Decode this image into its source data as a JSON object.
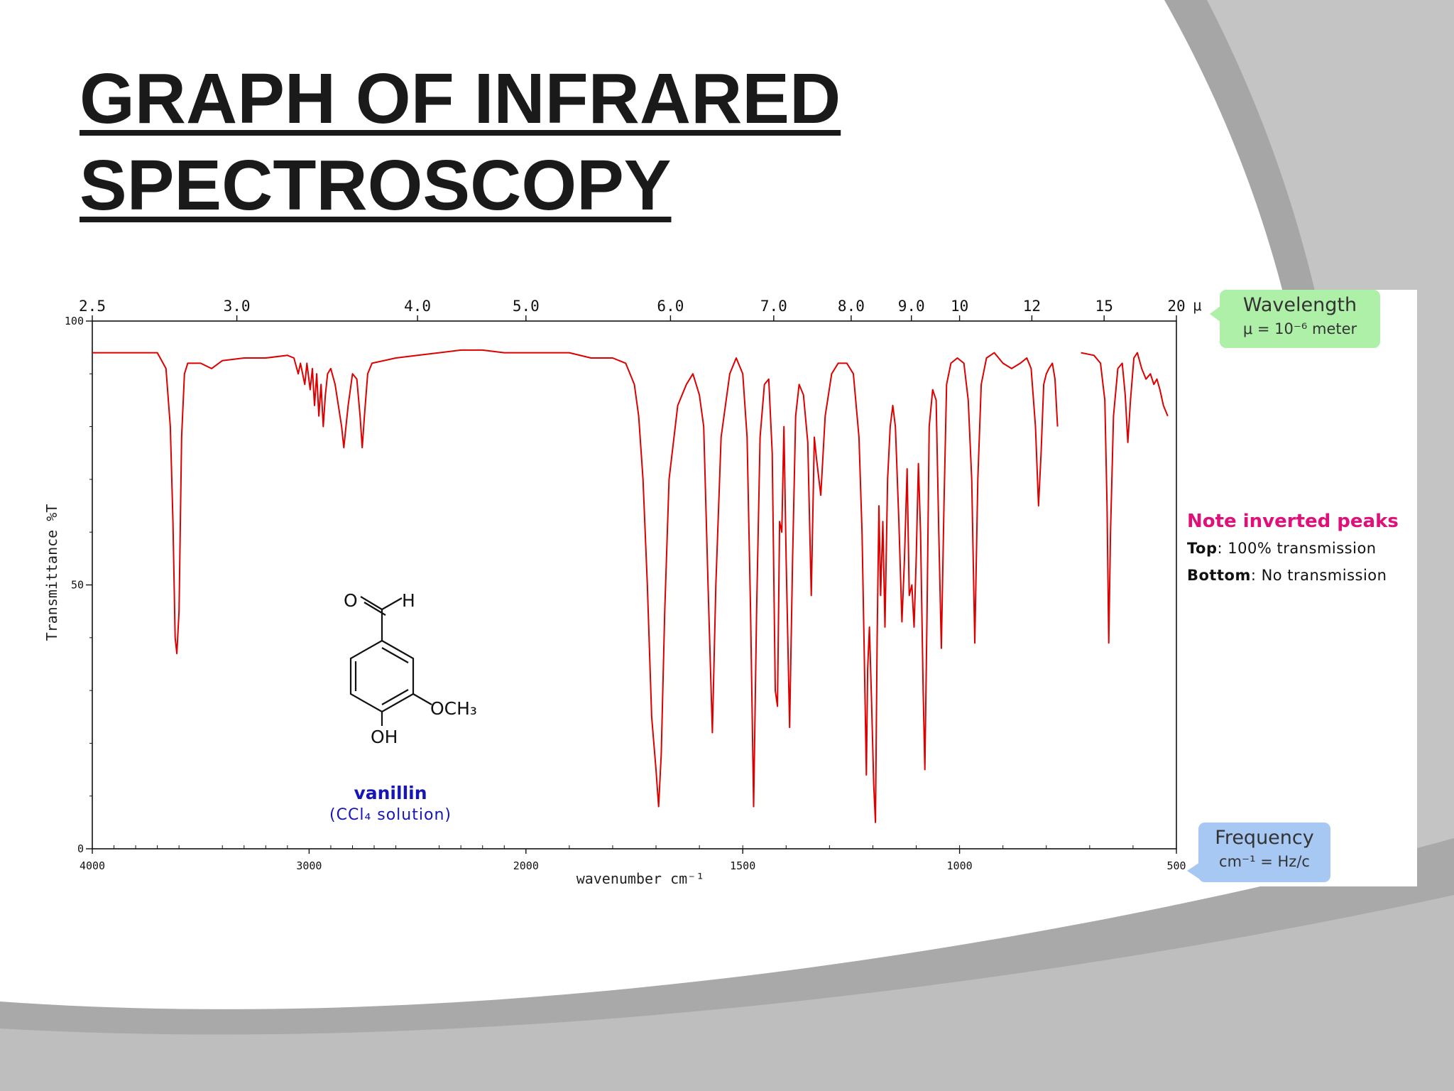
{
  "slide": {
    "title_line1": "GRAPH OF INFRARED",
    "title_line2": "SPECTROSCOPY"
  },
  "callouts": {
    "wavelength_title": "Wavelength",
    "wavelength_units": "μ = 10⁻⁶ meter",
    "frequency_title": "Frequency",
    "frequency_units": "cm⁻¹ = Hz/c"
  },
  "note": {
    "heading": "Note inverted peaks",
    "top_label": "Top",
    "top_text": ": 100% transmission",
    "bottom_label": "Bottom",
    "bottom_text": ": No transmission"
  },
  "molecule": {
    "name": "vanillin",
    "solvent": "(CCl₄ solution)",
    "atoms": {
      "o_aldehyde": "O",
      "h_aldehyde": "H",
      "methoxy": "OCH₃",
      "hydroxyl": "OH"
    }
  },
  "colors": {
    "spectrum": "#dd0000",
    "note_heading": "#e0107a",
    "molecule_label": "#1515b8",
    "wavelength_callout": "#aef0a8",
    "frequency_callout": "#a8c8f4"
  },
  "chart_data": {
    "type": "line",
    "title": "",
    "xlabel": "wavenumber cm⁻¹",
    "ylabel": "Transmittance %T",
    "xlim": [
      4000,
      500
    ],
    "ylim": [
      0,
      100
    ],
    "x_ticks": [
      4000,
      3000,
      2000,
      1500,
      1000,
      500
    ],
    "y_ticks": [
      0,
      50,
      100
    ],
    "top_axis_label": "μ",
    "top_ticks": [
      2.5,
      3.0,
      4.0,
      5.0,
      6.0,
      7.0,
      8.0,
      9.0,
      10,
      12,
      15,
      20
    ],
    "top_tick_labels": [
      "2.5",
      "3.0",
      "4.0",
      "5.0",
      "6.0",
      "7.0",
      "8.0",
      "9.0",
      "10",
      "12",
      "15",
      "20"
    ],
    "grid": false,
    "series": [
      {
        "segments": [
          [
            [
              4000,
              94
            ],
            [
              3800,
              94
            ],
            [
              3700,
              94
            ],
            [
              3660,
              91
            ],
            [
              3640,
              80
            ],
            [
              3628,
              62
            ],
            [
              3618,
              40
            ],
            [
              3610,
              37
            ],
            [
              3600,
              45
            ],
            [
              3588,
              78
            ],
            [
              3575,
              90
            ],
            [
              3560,
              92
            ],
            [
              3500,
              92
            ],
            [
              3450,
              91
            ],
            [
              3400,
              92.5
            ],
            [
              3300,
              93
            ],
            [
              3200,
              93
            ],
            [
              3100,
              93.5
            ],
            [
              3070,
              93
            ],
            [
              3050,
              90
            ],
            [
              3040,
              92
            ],
            [
              3020,
              88
            ],
            [
              3010,
              92
            ],
            [
              2995,
              87
            ],
            [
              2985,
              91
            ],
            [
              2975,
              84
            ],
            [
              2965,
              90
            ],
            [
              2955,
              82
            ],
            [
              2945,
              88
            ],
            [
              2935,
              80
            ],
            [
              2925,
              86
            ],
            [
              2915,
              90
            ],
            [
              2900,
              91
            ],
            [
              2880,
              88
            ],
            [
              2865,
              84
            ],
            [
              2850,
              80
            ],
            [
              2840,
              76
            ],
            [
              2830,
              80
            ],
            [
              2820,
              84
            ],
            [
              2800,
              90
            ],
            [
              2780,
              89
            ],
            [
              2765,
              82
            ],
            [
              2755,
              76
            ],
            [
              2745,
              82
            ],
            [
              2730,
              90
            ],
            [
              2710,
              92
            ],
            [
              2600,
              93
            ],
            [
              2500,
              93.5
            ],
            [
              2400,
              94
            ],
            [
              2300,
              94.5
            ],
            [
              2200,
              94.5
            ],
            [
              2100,
              94
            ],
            [
              2000,
              94
            ],
            [
              1900,
              94
            ],
            [
              1850,
              93
            ],
            [
              1800,
              93
            ],
            [
              1770,
              92
            ],
            [
              1750,
              88
            ],
            [
              1740,
              82
            ],
            [
              1730,
              70
            ],
            [
              1720,
              50
            ],
            [
              1710,
              25
            ],
            [
              1700,
              15
            ],
            [
              1694,
              8
            ],
            [
              1688,
              18
            ],
            [
              1680,
              45
            ],
            [
              1670,
              70
            ],
            [
              1650,
              84
            ],
            [
              1630,
              88
            ],
            [
              1615,
              90
            ],
            [
              1600,
              86
            ],
            [
              1590,
              80
            ],
            [
              1580,
              50
            ],
            [
              1570,
              22
            ],
            [
              1562,
              50
            ],
            [
              1550,
              78
            ],
            [
              1530,
              90
            ],
            [
              1515,
              93
            ],
            [
              1500,
              90
            ],
            [
              1490,
              78
            ],
            [
              1482,
              45
            ],
            [
              1475,
              8
            ],
            [
              1468,
              45
            ],
            [
              1460,
              78
            ],
            [
              1450,
              88
            ],
            [
              1440,
              89
            ],
            [
              1432,
              75
            ],
            [
              1425,
              30
            ],
            [
              1420,
              27
            ],
            [
              1415,
              62
            ],
            [
              1410,
              60
            ],
            [
              1405,
              80
            ],
            [
              1400,
              55
            ],
            [
              1392,
              23
            ],
            [
              1385,
              55
            ],
            [
              1378,
              82
            ],
            [
              1370,
              88
            ],
            [
              1360,
              86
            ],
            [
              1350,
              77
            ],
            [
              1342,
              48
            ],
            [
              1335,
              78
            ],
            [
              1330,
              74
            ],
            [
              1320,
              67
            ],
            [
              1310,
              82
            ],
            [
              1295,
              90
            ],
            [
              1280,
              92
            ],
            [
              1260,
              92
            ],
            [
              1245,
              90
            ],
            [
              1232,
              78
            ],
            [
              1225,
              60
            ],
            [
              1220,
              38
            ],
            [
              1215,
              14
            ],
            [
              1212,
              34
            ],
            [
              1208,
              42
            ],
            [
              1203,
              28
            ],
            [
              1198,
              12
            ],
            [
              1194,
              5
            ],
            [
              1190,
              40
            ],
            [
              1186,
              65
            ],
            [
              1182,
              48
            ],
            [
              1177,
              62
            ],
            [
              1172,
              42
            ],
            [
              1166,
              70
            ],
            [
              1160,
              80
            ],
            [
              1154,
              84
            ],
            [
              1148,
              80
            ],
            [
              1140,
              62
            ],
            [
              1133,
              43
            ],
            [
              1127,
              55
            ],
            [
              1121,
              72
            ],
            [
              1116,
              48
            ],
            [
              1110,
              50
            ],
            [
              1105,
              42
            ],
            [
              1100,
              55
            ],
            [
              1095,
              73
            ],
            [
              1090,
              60
            ],
            [
              1084,
              30
            ],
            [
              1080,
              15
            ],
            [
              1075,
              45
            ],
            [
              1070,
              80
            ],
            [
              1062,
              87
            ],
            [
              1054,
              85
            ],
            [
              1048,
              60
            ],
            [
              1042,
              38
            ],
            [
              1036,
              65
            ],
            [
              1030,
              88
            ],
            [
              1020,
              92
            ],
            [
              1005,
              93
            ],
            [
              990,
              92
            ],
            [
              980,
              85
            ],
            [
              972,
              70
            ],
            [
              965,
              39
            ],
            [
              958,
              70
            ],
            [
              950,
              88
            ],
            [
              938,
              93
            ],
            [
              920,
              94
            ],
            [
              900,
              92
            ],
            [
              880,
              91
            ],
            [
              860,
              92
            ],
            [
              845,
              93
            ],
            [
              835,
              91
            ],
            [
              825,
              80
            ],
            [
              818,
              65
            ],
            [
              812,
              75
            ],
            [
              806,
              88
            ],
            [
              800,
              90
            ],
            [
              794,
              91
            ],
            [
              786,
              92
            ],
            [
              780,
              89
            ],
            [
              774,
              80
            ]
          ],
          [
            [
              720,
              94
            ],
            [
              690,
              93.5
            ],
            [
              675,
              92
            ],
            [
              665,
              85
            ],
            [
              660,
              65
            ],
            [
              656,
              39
            ],
            [
              652,
              60
            ],
            [
              645,
              82
            ],
            [
              635,
              91
            ],
            [
              625,
              92
            ],
            [
              618,
              86
            ],
            [
              612,
              77
            ],
            [
              606,
              85
            ],
            [
              598,
              93
            ],
            [
              590,
              94
            ],
            [
              580,
              91
            ],
            [
              570,
              89
            ],
            [
              560,
              90
            ],
            [
              552,
              88
            ],
            [
              545,
              89
            ],
            [
              538,
              87
            ],
            [
              530,
              84
            ],
            [
              520,
              82
            ]
          ]
        ]
      }
    ]
  }
}
